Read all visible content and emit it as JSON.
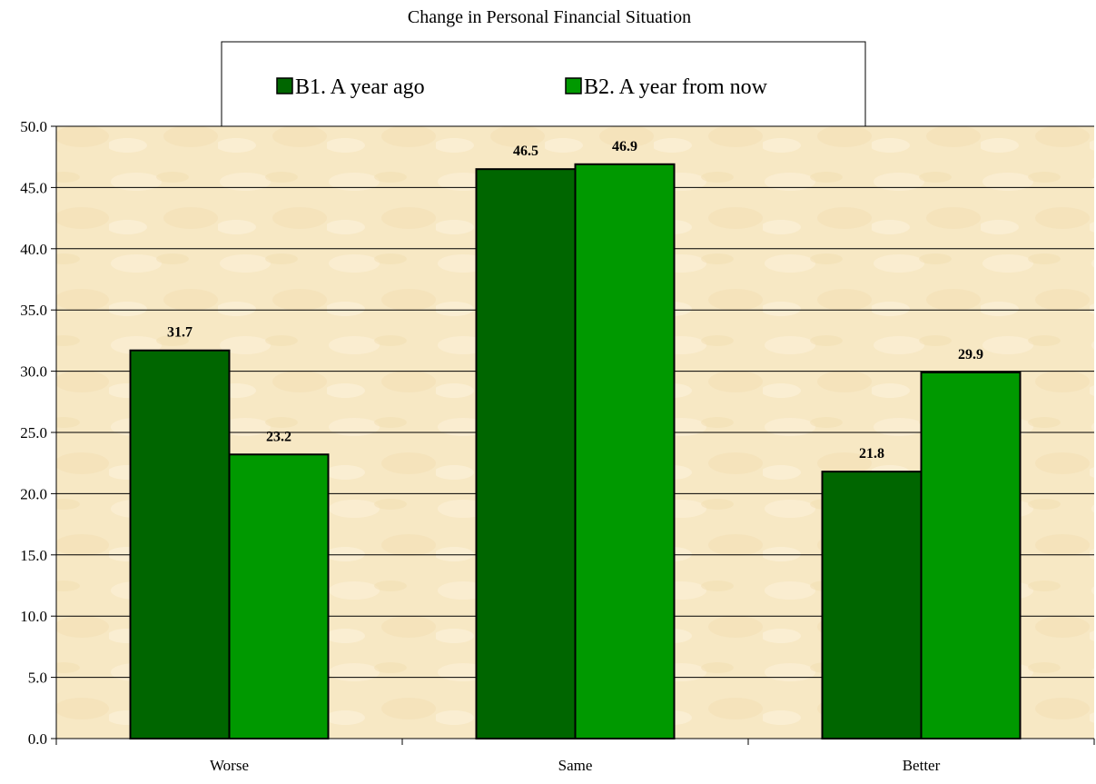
{
  "chart_data": {
    "type": "bar",
    "title": "Change in Personal Financial Situation",
    "xlabel": "",
    "ylabel": "",
    "categories": [
      "Worse",
      "Same",
      "Better"
    ],
    "series": [
      {
        "name": "B1. A year ago",
        "values": [
          31.7,
          46.5,
          21.8
        ],
        "color": "#006600"
      },
      {
        "name": "B2. A year from now",
        "values": [
          23.2,
          46.9,
          29.9
        ],
        "color": "#009900"
      }
    ],
    "ylim": [
      0,
      50
    ],
    "yticks": [
      "0.0",
      "5.0",
      "10.0",
      "15.0",
      "20.0",
      "25.0",
      "30.0",
      "35.0",
      "40.0",
      "45.0",
      "50.0"
    ],
    "data_labels": [
      [
        "31.7",
        "46.5",
        "21.8"
      ],
      [
        "23.2",
        "46.9",
        "29.9"
      ]
    ],
    "grid": true,
    "legend": "top",
    "plot_background": "#f7e9c6"
  }
}
